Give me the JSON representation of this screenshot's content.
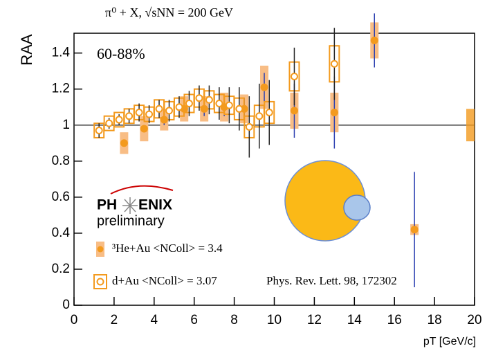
{
  "chart_data": {
    "type": "errorbar_scatter",
    "title": "π⁰ + X, √sNN = 200 GeV",
    "x_label": "pT [GeV/c]",
    "y_label": "RAA",
    "annotations": [
      "60-88%",
      "Phys. Rev. Lett. 98, 172302"
    ],
    "logo": {
      "left": "PH",
      "right": "ENIX",
      "subtitle": "preliminary"
    },
    "xlim": [
      0,
      20
    ],
    "xticks": [
      0,
      2,
      4,
      6,
      8,
      10,
      12,
      14,
      16,
      18,
      20
    ],
    "ylim": [
      0,
      1.51
    ],
    "yticks": [
      0,
      0.2,
      0.4,
      0.6,
      0.8,
      1,
      1.2,
      1.4
    ],
    "reference_line": 1,
    "normalization_uncertainty": 0.09,
    "series": [
      {
        "name": "³He+Au <NColl> = 3.4",
        "marker": "filled",
        "color": "#f39a1e",
        "error_color": "#2b3fb0",
        "sys_color": "#f8bd85",
        "x": [
          2.5,
          3.5,
          4.5,
          5.5,
          6.5,
          7.5,
          8.5,
          9.5,
          11,
          13,
          15,
          17
        ],
        "values": [
          0.9,
          0.98,
          1.03,
          1.09,
          1.09,
          1.1,
          1.09,
          1.21,
          1.08,
          1.07,
          1.47,
          0.42
        ],
        "errors": [
          0.02,
          0.02,
          0.03,
          0.03,
          0.04,
          0.05,
          0.06,
          0.08,
          0.15,
          0.2,
          0.15,
          0.32
        ],
        "sys": [
          0.06,
          0.07,
          0.06,
          0.07,
          0.07,
          0.08,
          0.08,
          0.12,
          0.1,
          0.11,
          0.1,
          0.03
        ]
      },
      {
        "name": "d+Au <NColl> = 3.07",
        "marker": "open",
        "color": "#f39a1e",
        "error_color": "#222222",
        "x": [
          1.25,
          1.75,
          2.25,
          2.75,
          3.25,
          3.75,
          4.25,
          4.75,
          5.25,
          5.75,
          6.25,
          6.75,
          7.25,
          7.75,
          8.25,
          8.75,
          9.25,
          9.75,
          11,
          13
        ],
        "values": [
          0.97,
          1.01,
          1.03,
          1.05,
          1.07,
          1.06,
          1.09,
          1.08,
          1.1,
          1.12,
          1.15,
          1.14,
          1.12,
          1.11,
          1.09,
          0.99,
          1.05,
          1.07,
          1.27,
          1.34
        ],
        "errors": [
          0.04,
          0.03,
          0.03,
          0.04,
          0.05,
          0.05,
          0.05,
          0.06,
          0.06,
          0.07,
          0.07,
          0.08,
          0.09,
          0.1,
          0.12,
          0.17,
          0.18,
          0.18,
          0.16,
          0.2
        ],
        "sys": [
          0.04,
          0.04,
          0.04,
          0.04,
          0.04,
          0.04,
          0.05,
          0.05,
          0.05,
          0.05,
          0.05,
          0.05,
          0.05,
          0.05,
          0.06,
          0.06,
          0.06,
          0.06,
          0.08,
          0.1
        ]
      }
    ]
  }
}
